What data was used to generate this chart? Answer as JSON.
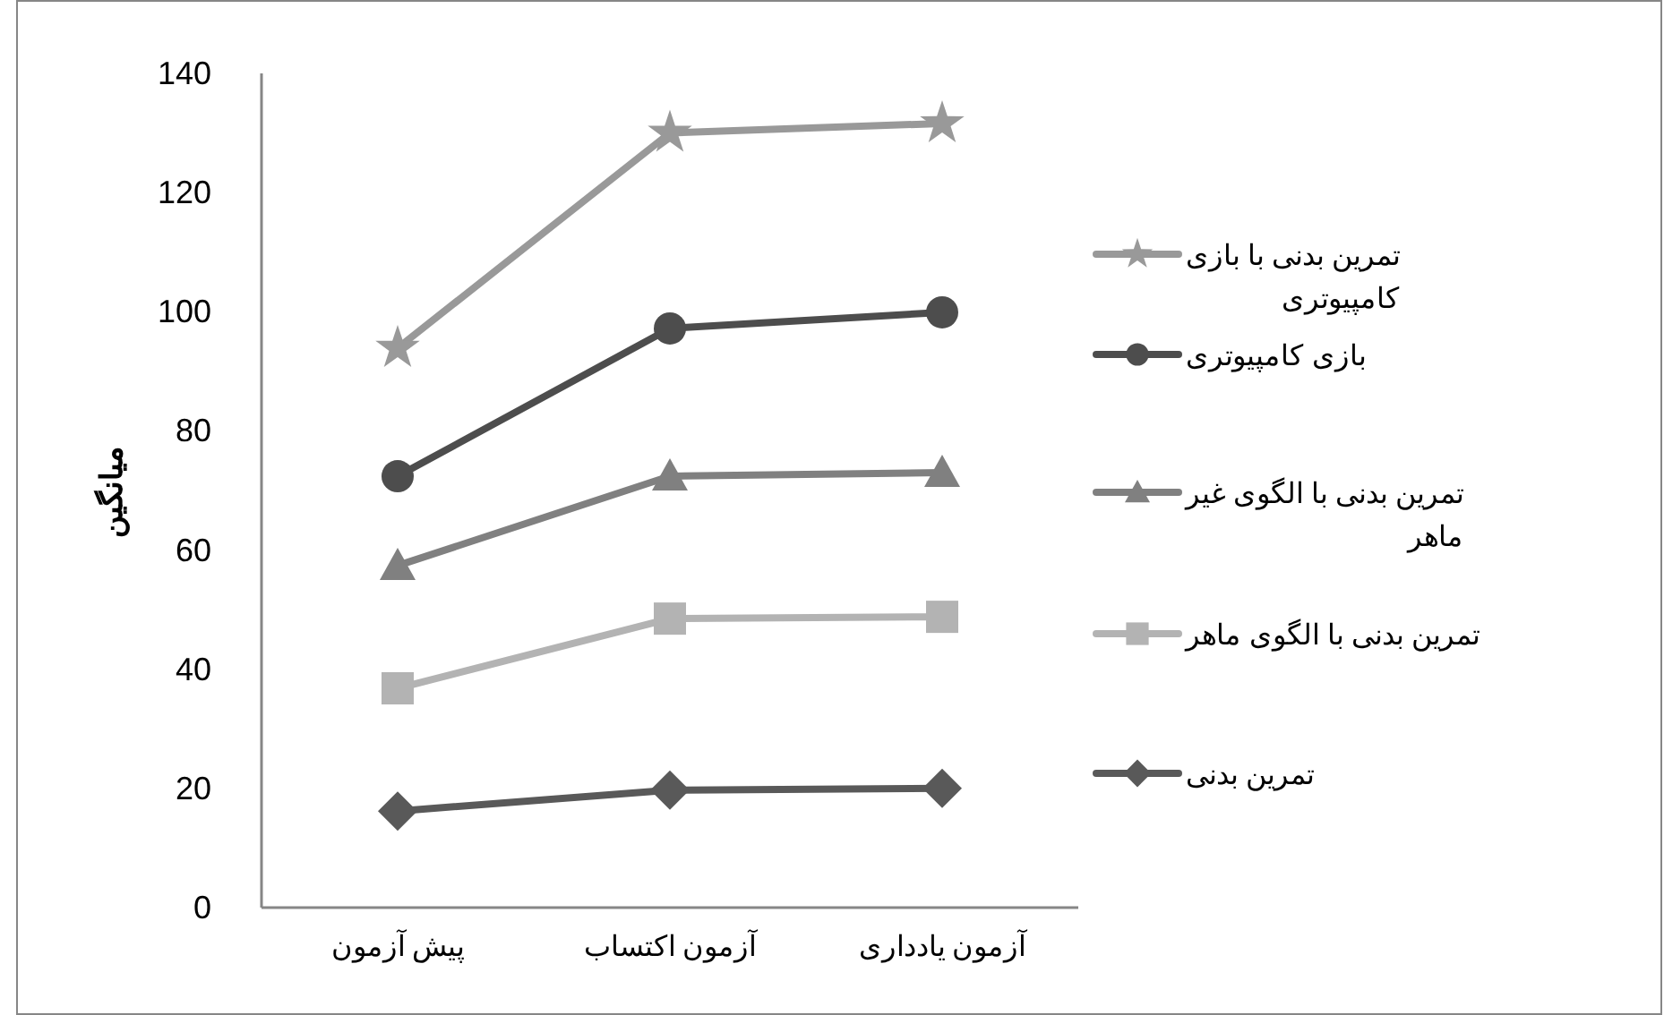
{
  "chart_data": {
    "type": "line",
    "ylabel": "میانگین",
    "categories": [
      "پیش آزمون",
      "آزمون اکتساب",
      "آزمون یادداری"
    ],
    "ylim": [
      0,
      140
    ],
    "yticks": [
      0,
      20,
      40,
      60,
      80,
      100,
      120,
      140
    ],
    "legend": "right",
    "series": [
      {
        "name": "تمرین بدنی با بازی کامپیوتری",
        "color": "#999999",
        "marker": "star",
        "values": [
          93.9,
          130,
          131.6
        ]
      },
      {
        "name": "بازی کامپیوتری",
        "color": "#4d4d4d",
        "marker": "circle",
        "values": [
          72.4,
          97.2,
          99.9
        ]
      },
      {
        "name": "تمرین بدنی با الگوی غیر ماهر",
        "color": "#808080",
        "marker": "triangle",
        "values": [
          57.4,
          72.4,
          73
        ]
      },
      {
        "name": "تمرین بدنی با الگوی ماهر",
        "color": "#b3b3b3",
        "marker": "square",
        "values": [
          36.8,
          48.5,
          48.8
        ]
      },
      {
        "name": "تمرین بدنی",
        "color": "#595959",
        "marker": "diamond",
        "values": [
          16.2,
          19.7,
          20
        ]
      }
    ]
  }
}
